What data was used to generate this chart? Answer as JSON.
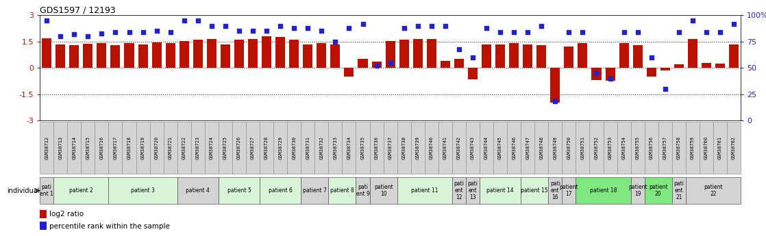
{
  "title": "GDS1597 / 12193",
  "samples": [
    "GSM38712",
    "GSM38713",
    "GSM38714",
    "GSM38715",
    "GSM38716",
    "GSM38717",
    "GSM38718",
    "GSM38719",
    "GSM38720",
    "GSM38721",
    "GSM38722",
    "GSM38723",
    "GSM38724",
    "GSM38725",
    "GSM38726",
    "GSM38727",
    "GSM38728",
    "GSM38729",
    "GSM38730",
    "GSM38731",
    "GSM38732",
    "GSM38733",
    "GSM38734",
    "GSM38735",
    "GSM38736",
    "GSM38737",
    "GSM38738",
    "GSM38739",
    "GSM38740",
    "GSM38741",
    "GSM38742",
    "GSM38743",
    "GSM38744",
    "GSM38745",
    "GSM38746",
    "GSM38747",
    "GSM38748",
    "GSM38749",
    "GSM38750",
    "GSM38751",
    "GSM38752",
    "GSM38753",
    "GSM38754",
    "GSM38755",
    "GSM38756",
    "GSM38757",
    "GSM38758",
    "GSM38759",
    "GSM38760",
    "GSM38761",
    "GSM38762"
  ],
  "log2ratio": [
    1.7,
    1.35,
    1.3,
    1.38,
    1.4,
    1.3,
    1.4,
    1.35,
    1.45,
    1.4,
    1.55,
    1.6,
    1.65,
    1.35,
    1.6,
    1.65,
    1.8,
    1.75,
    1.6,
    1.35,
    1.4,
    1.35,
    -0.5,
    0.5,
    0.35,
    1.55,
    1.6,
    1.65,
    1.65,
    0.4,
    0.5,
    -0.65,
    1.35,
    1.35,
    1.4,
    1.35,
    1.3,
    -2.0,
    1.2,
    1.4,
    -0.7,
    -0.75,
    1.4,
    1.3,
    -0.5,
    -0.15,
    0.2,
    1.65,
    0.3,
    0.25,
    1.35
  ],
  "percentile": [
    95,
    80,
    82,
    80,
    83,
    84,
    84,
    84,
    85,
    84,
    95,
    95,
    90,
    90,
    85,
    85,
    85,
    90,
    88,
    88,
    85,
    75,
    88,
    92,
    52,
    55,
    88,
    90,
    90,
    90,
    68,
    60,
    88,
    84,
    84,
    84,
    90,
    18,
    84,
    84,
    45,
    40,
    84,
    84,
    60,
    30,
    84,
    95,
    84,
    84,
    92
  ],
  "patients": [
    {
      "label": "pati\nent 1",
      "start": 0,
      "end": 1,
      "color": "#d4d4d4"
    },
    {
      "label": "patient 2",
      "start": 1,
      "end": 5,
      "color": "#d8f5d8"
    },
    {
      "label": "patient 3",
      "start": 5,
      "end": 10,
      "color": "#d8f5d8"
    },
    {
      "label": "patient 4",
      "start": 10,
      "end": 13,
      "color": "#d4d4d4"
    },
    {
      "label": "patient 5",
      "start": 13,
      "end": 16,
      "color": "#d8f5d8"
    },
    {
      "label": "patient 6",
      "start": 16,
      "end": 19,
      "color": "#d8f5d8"
    },
    {
      "label": "patient 7",
      "start": 19,
      "end": 21,
      "color": "#d4d4d4"
    },
    {
      "label": "patient 8",
      "start": 21,
      "end": 23,
      "color": "#d8f5d8"
    },
    {
      "label": "pati\nent 9",
      "start": 23,
      "end": 24,
      "color": "#d4d4d4"
    },
    {
      "label": "patient\n10",
      "start": 24,
      "end": 26,
      "color": "#d4d4d4"
    },
    {
      "label": "patient 11",
      "start": 26,
      "end": 30,
      "color": "#d8f5d8"
    },
    {
      "label": "pati\nent\n12",
      "start": 30,
      "end": 31,
      "color": "#d4d4d4"
    },
    {
      "label": "pati\nent\n13",
      "start": 31,
      "end": 32,
      "color": "#d4d4d4"
    },
    {
      "label": "patient 14",
      "start": 32,
      "end": 35,
      "color": "#d8f5d8"
    },
    {
      "label": "patient 15",
      "start": 35,
      "end": 37,
      "color": "#d8f5d8"
    },
    {
      "label": "pati\nent\n16",
      "start": 37,
      "end": 38,
      "color": "#d4d4d4"
    },
    {
      "label": "patient\n17",
      "start": 38,
      "end": 39,
      "color": "#d4d4d4"
    },
    {
      "label": "patient 18",
      "start": 39,
      "end": 43,
      "color": "#80e880"
    },
    {
      "label": "patient\n19",
      "start": 43,
      "end": 44,
      "color": "#d4d4d4"
    },
    {
      "label": "patient\n20",
      "start": 44,
      "end": 46,
      "color": "#80e880"
    },
    {
      "label": "pati\nent\n21",
      "start": 46,
      "end": 47,
      "color": "#d4d4d4"
    },
    {
      "label": "patient\n22",
      "start": 47,
      "end": 51,
      "color": "#d4d4d4"
    }
  ],
  "bar_color": "#bb1100",
  "dot_color": "#2222cc",
  "ylim_left": [
    -3,
    3
  ],
  "ylim_right": [
    0,
    100
  ],
  "yticks_left": [
    -3,
    -1.5,
    0,
    1.5,
    3
  ],
  "yticks_right": [
    0,
    25,
    50,
    75,
    100
  ],
  "hline_zero_color": "#cc0000",
  "hline_black_color": "#333333",
  "legend_items": [
    {
      "label": "log2 ratio",
      "color": "#bb1100"
    },
    {
      "label": "percentile rank within the sample",
      "color": "#2222cc"
    }
  ],
  "label_box_color": "#d4d4d4",
  "label_box_edge": "#888888"
}
